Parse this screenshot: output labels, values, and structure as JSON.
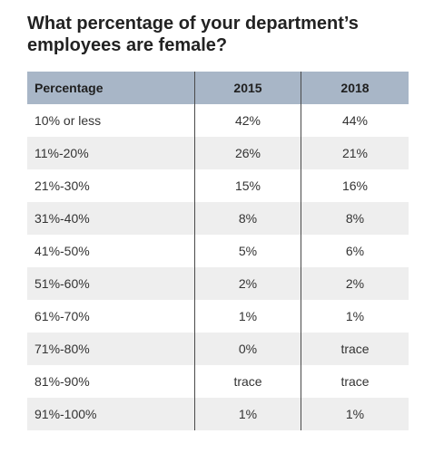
{
  "title": "What percentage of your department’s employees are female?",
  "chart_data": {
    "type": "table",
    "columns": [
      "Percentage",
      "2015",
      "2018"
    ],
    "rows": [
      {
        "label": "10% or less",
        "y2015": "42%",
        "y2018": "44%"
      },
      {
        "label": "11%-20%",
        "y2015": "26%",
        "y2018": "21%"
      },
      {
        "label": "21%-30%",
        "y2015": "15%",
        "y2018": "16%"
      },
      {
        "label": "31%-40%",
        "y2015": "8%",
        "y2018": "8%"
      },
      {
        "label": "41%-50%",
        "y2015": "5%",
        "y2018": "6%"
      },
      {
        "label": "51%-60%",
        "y2015": "2%",
        "y2018": "2%"
      },
      {
        "label": "61%-70%",
        "y2015": "1%",
        "y2018": "1%"
      },
      {
        "label": "71%-80%",
        "y2015": "0%",
        "y2018": "trace"
      },
      {
        "label": "81%-90%",
        "y2015": "trace",
        "y2018": "trace"
      },
      {
        "label": "91%-100%",
        "y2015": "1%",
        "y2018": "1%"
      }
    ]
  },
  "colors": {
    "header_bg": "#a8b6c7",
    "stripe_bg": "#eeeeee",
    "separator": "#4a4a4a"
  }
}
